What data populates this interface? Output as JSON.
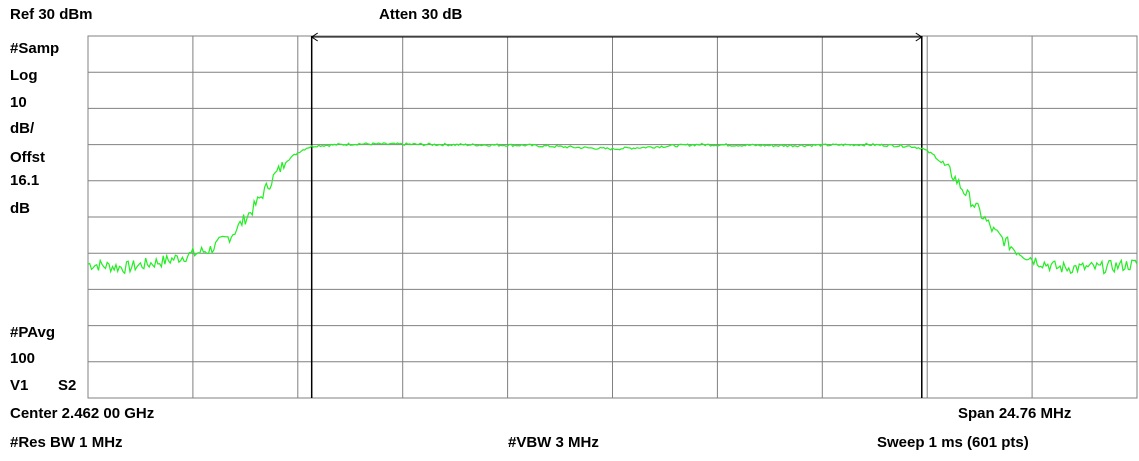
{
  "header": {
    "ref_level": "Ref 30 dBm",
    "attenuation": "Atten 30 dB"
  },
  "side_panel": {
    "detector": "#Samp",
    "scale_type": "Log",
    "scale_value": "10",
    "scale_unit": "dB/",
    "offset_label": "Offst",
    "offset_value": "16.1",
    "offset_unit": "dB",
    "avg_label": "#PAvg",
    "avg_count": "100",
    "v1": "V1",
    "s2": "S2"
  },
  "footer": {
    "center": "Center 2.462 00 GHz",
    "span": "Span 24.76 MHz",
    "rbw": "#Res BW 1 MHz",
    "vbw": "#VBW 3 MHz",
    "sweep": "Sweep 1 ms (601 pts)"
  },
  "colors": {
    "trace": "#22ee22",
    "grid": "#808080",
    "marker_line": "#000000",
    "background": "#ffffff"
  },
  "chart_data": {
    "type": "line",
    "xlabel": "",
    "ylabel": "",
    "x_unit": "MHz offset from center",
    "xlim": [
      -12.38,
      12.38
    ],
    "ylim": [
      -70,
      30
    ],
    "grid": true,
    "x_divisions": 10,
    "y_divisions": 10,
    "series": [
      {
        "x": [
          -12.38,
          -11.5,
          -10.5,
          -9.5,
          -9.0,
          -8.5,
          -8.0,
          -7.7,
          -7.4,
          -7.2,
          -7.0,
          -6.0,
          -4.0,
          -2.0,
          0.0,
          2.0,
          4.0,
          6.0,
          7.0,
          7.3,
          7.6,
          8.0,
          8.5,
          9.0,
          9.5,
          10.0,
          10.5,
          11.0,
          11.5,
          12.38
        ],
        "y": [
          -33,
          -34,
          -32,
          -29,
          -25,
          -18,
          -9,
          -4.5,
          -2,
          -0.8,
          -0.3,
          0.2,
          0,
          -0.2,
          -1.2,
          0,
          -0.3,
          0,
          -0.4,
          -1,
          -3,
          -8,
          -16,
          -24,
          -29,
          -32,
          -34,
          -34,
          -34,
          -33
        ]
      }
    ],
    "annotations": [
      {
        "type": "vertical-line",
        "x": -7.1
      },
      {
        "type": "vertical-line",
        "x": 7.3
      },
      {
        "type": "span-arrow",
        "x_from": -7.1,
        "x_to": 7.3
      }
    ]
  }
}
